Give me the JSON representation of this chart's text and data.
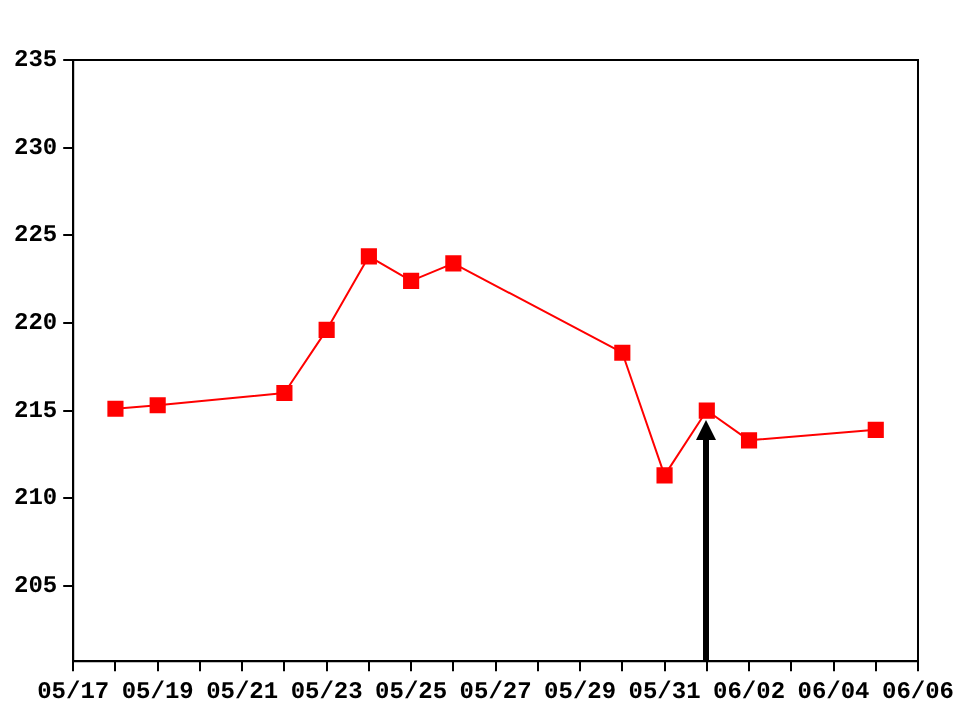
{
  "chart_data": {
    "type": "line",
    "x": [
      "--05-18",
      "--05-19",
      "--05-22",
      "--05-23",
      "--05-24",
      "--05-25",
      "--05-26",
      "--05-30",
      "--05-31",
      "--06-01",
      "--06-02",
      "--06-05"
    ],
    "series": [
      {
        "color": "#ff0000",
        "values": [
          215.1,
          215.3,
          216.0,
          219.6,
          223.8,
          222.4,
          223.4,
          218.3,
          211.3,
          215.0,
          213.3,
          213.9
        ]
      }
    ],
    "xlim": [
      "--05-17",
      "--06-06"
    ],
    "xticks": [
      {
        "value": "--05-17",
        "label": "05/17"
      },
      {
        "value": "--05-18",
        "label": null
      },
      {
        "value": "--05-19",
        "label": "05/19"
      },
      {
        "value": "--05-20",
        "label": null
      },
      {
        "value": "--05-21",
        "label": "05/21"
      },
      {
        "value": "--05-22",
        "label": null
      },
      {
        "value": "--05-23",
        "label": "05/23"
      },
      {
        "value": "--05-24",
        "label": null
      },
      {
        "value": "--05-25",
        "label": "05/25"
      },
      {
        "value": "--05-26",
        "label": null
      },
      {
        "value": "--05-27",
        "label": "05/27"
      },
      {
        "value": "--05-28",
        "label": null
      },
      {
        "value": "--05-29",
        "label": "05/29"
      },
      {
        "value": "--05-30",
        "label": null
      },
      {
        "value": "--05-31",
        "label": "05/31"
      },
      {
        "value": "--06-01",
        "label": null
      },
      {
        "value": "--06-02",
        "label": "06/02"
      },
      {
        "value": "--06-03",
        "label": null
      },
      {
        "value": "--06-04",
        "label": "06/04"
      },
      {
        "value": "--06-05",
        "label": null
      },
      {
        "value": "--06-06",
        "label": "06/06"
      }
    ],
    "ylim": [
      200.7,
      235
    ],
    "yticks": [
      205,
      210,
      215,
      220,
      225,
      230,
      235
    ],
    "ref_lines": [
      {
        "axis": "x",
        "value": "--06-01",
        "color": "#000000"
      }
    ],
    "marker": "square",
    "line_style": "solid",
    "grid": false,
    "legend": false
  }
}
